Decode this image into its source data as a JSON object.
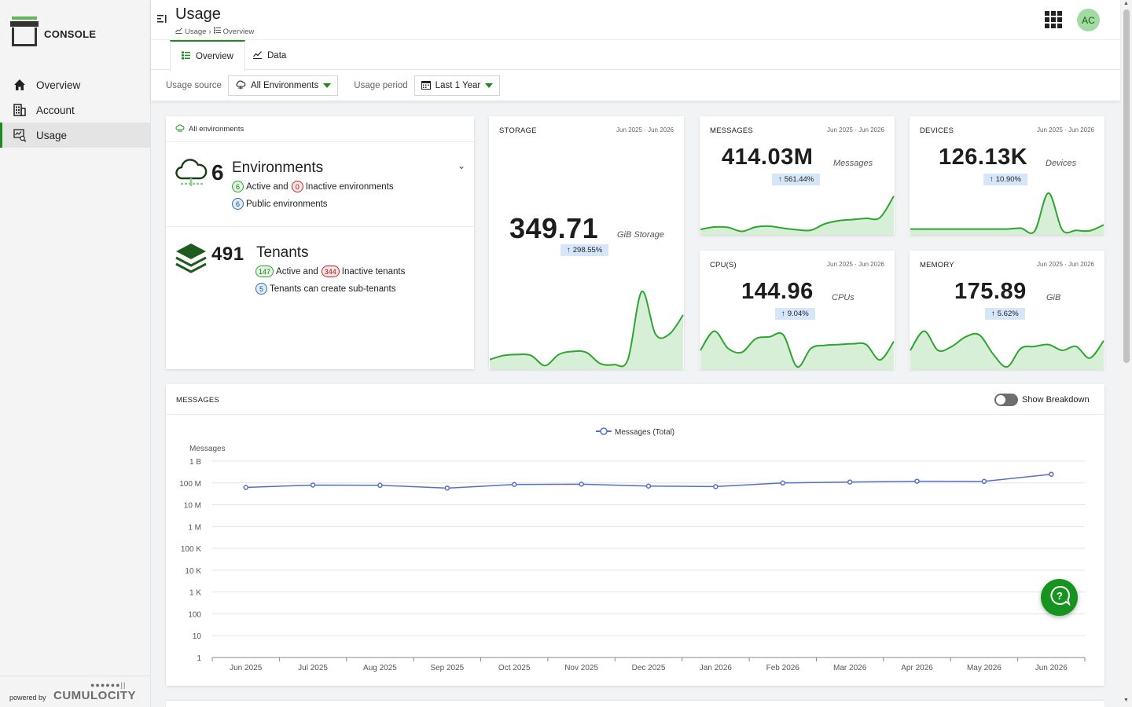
{
  "app": {
    "brand": "CONSOLE",
    "powered_by": "powered by",
    "vendor": "CUMULOCITY"
  },
  "sidebar": {
    "items": [
      {
        "label": "Overview",
        "icon": "home-icon"
      },
      {
        "label": "Account",
        "icon": "building-icon"
      },
      {
        "label": "Usage",
        "icon": "usage-search-icon",
        "active": true
      }
    ]
  },
  "header": {
    "title": "Usage",
    "breadcrumb": [
      "Usage",
      "Overview"
    ],
    "avatar_initials": "AC"
  },
  "tabs": [
    {
      "label": "Overview",
      "active": true
    },
    {
      "label": "Data"
    }
  ],
  "filters": {
    "source_label": "Usage source",
    "source_value": "All Environments",
    "period_label": "Usage period",
    "period_value": "Last 1 Year"
  },
  "summary": {
    "header": "All environments",
    "environments": {
      "count": "6",
      "title": "Environments",
      "active": "6",
      "active_text": "Active and",
      "inactive": "0",
      "inactive_text": "Inactive environments",
      "public": "6",
      "public_text": "Public environments"
    },
    "tenants": {
      "count": "491",
      "title": "Tenants",
      "active": "147",
      "active_text": "Active and",
      "inactive": "344",
      "inactive_text": "Inactive tenants",
      "sub": "5",
      "sub_text": "Tenants can create sub-tenants"
    }
  },
  "metrics": {
    "storage": {
      "title": "STORAGE",
      "range": "Jun 2025 · Jun 2026",
      "value": "349.71",
      "unit": "GiB Storage",
      "change": "298.55%",
      "trend": [
        0.08,
        0.12,
        0.13,
        0.12,
        0.02,
        0.13,
        0.16,
        0.15,
        0.04,
        0.03,
        0.08,
        0.75,
        0.33,
        0.33,
        0.52
      ]
    },
    "messages": {
      "title": "MESSAGES",
      "range": "Jun 2025 · Jun 2026",
      "value": "414.03M",
      "unit": "Messages",
      "change": "561.44%",
      "trend": [
        0.1,
        0.16,
        0.15,
        0.05,
        0.16,
        0.18,
        0.13,
        0.09,
        0.08,
        0.24,
        0.32,
        0.35,
        0.38,
        0.4,
        0.95
      ]
    },
    "devices": {
      "title": "DEVICES",
      "range": "Jun 2025 · Jun 2026",
      "value": "126.13K",
      "unit": "Devices",
      "change": "10.90%",
      "trend": [
        0.1,
        0.1,
        0.1,
        0.1,
        0.1,
        0.1,
        0.1,
        0.1,
        0.12,
        0.05,
        0.95,
        0.08,
        0.07,
        0.06,
        0.2
      ]
    },
    "cpu": {
      "title": "CPU(S)",
      "range": "Jun 2025 · Jun 2026",
      "value": "144.96",
      "unit": "CPUs",
      "change": "9.04%",
      "trend": [
        0.45,
        0.95,
        0.5,
        0.4,
        0.75,
        0.8,
        0.85,
        0.02,
        0.5,
        0.58,
        0.6,
        0.62,
        0.6,
        0.2,
        0.68
      ]
    },
    "memory": {
      "title": "MEMORY",
      "range": "Jun 2025 · Jun 2026",
      "value": "175.89",
      "unit": "GiB",
      "change": "5.62%",
      "trend": [
        0.45,
        0.95,
        0.45,
        0.55,
        0.8,
        0.85,
        0.35,
        0.02,
        0.5,
        0.55,
        0.6,
        0.45,
        0.55,
        0.25,
        0.7
      ]
    }
  },
  "messages_chart": {
    "title": "MESSAGES",
    "toggle_label": "Show Breakdown",
    "toggle_on": false
  },
  "chart_data": {
    "type": "line",
    "title": "",
    "ylabel": "Messages",
    "xlabel": "",
    "yscale": "log",
    "ylim": [
      1,
      1000000000
    ],
    "y_ticks": [
      {
        "value": 1000000000,
        "label": "1 B"
      },
      {
        "value": 100000000,
        "label": "100 M"
      },
      {
        "value": 10000000,
        "label": "10 M"
      },
      {
        "value": 1000000,
        "label": "1 M"
      },
      {
        "value": 100000,
        "label": "100 K"
      },
      {
        "value": 10000,
        "label": "10 K"
      },
      {
        "value": 1000,
        "label": "1 K"
      },
      {
        "value": 100,
        "label": "100"
      },
      {
        "value": 10,
        "label": "10"
      },
      {
        "value": 1,
        "label": "1"
      }
    ],
    "categories": [
      "Jun 2025",
      "Jul 2025",
      "Aug 2025",
      "Sep 2025",
      "Oct 2025",
      "Nov 2025",
      "Dec 2025",
      "Jan 2026",
      "Feb 2026",
      "Mar 2026",
      "Apr 2026",
      "May 2026",
      "Jun 2026"
    ],
    "legend_position": "top-center",
    "grid": true,
    "series": [
      {
        "name": "Messages (Total)",
        "color": "#5470c6",
        "values": [
          62000000,
          80000000,
          78000000,
          58000000,
          85000000,
          88000000,
          72000000,
          68000000,
          100000000,
          110000000,
          120000000,
          118000000,
          250000000
        ]
      }
    ]
  },
  "colors": {
    "accent": "#1d8a1d",
    "spark_line": "#2ea52e",
    "spark_fill": "#d6efd6",
    "series": "#5470c6"
  }
}
